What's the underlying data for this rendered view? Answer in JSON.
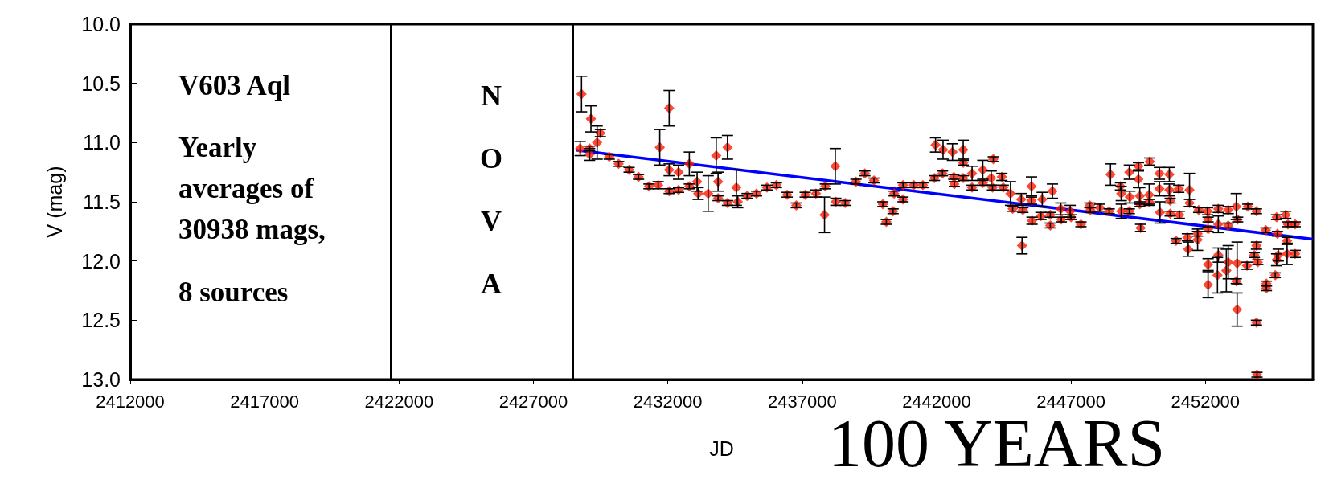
{
  "chart_data": {
    "type": "scatter",
    "xlabel": "JD",
    "ylabel": "V (mag)",
    "xlim": [
      2412000,
      2456000
    ],
    "xticks": [
      2412000,
      2417000,
      2422000,
      2427000,
      2432000,
      2437000,
      2442000,
      2447000,
      2452000
    ],
    "ylim": [
      13.0,
      10.0
    ],
    "yticks": [
      {
        "value": 10,
        "label": "10.0"
      },
      10.5,
      {
        "value": 11,
        "label": "11.0"
      },
      11.5,
      {
        "value": 12,
        "label": "12.0"
      },
      12.5,
      {
        "value": 13,
        "label": "13.0"
      }
    ],
    "grid": false,
    "marker": "diamond",
    "annotations": [
      "V603 Aql",
      "Yearly averages of 30938 mags,",
      "8 sources",
      "NOVA",
      "100 YEARS"
    ],
    "ref_lines": [
      {
        "axis": "x",
        "value": 2421700,
        "label": null,
        "color": "#000000"
      },
      {
        "axis": "x",
        "value": 2428460,
        "label": null,
        "color": "#000000"
      }
    ],
    "series": [
      {
        "color": "#ff1a00",
        "x": [
          2428740,
          2428790,
          2429090,
          2429090,
          2429140,
          2429370,
          2429490,
          2429820,
          2430170,
          2430560,
          2430910,
          2431300,
          2431640,
          2431700,
          2432050,
          2432050,
          2432050,
          2432400,
          2432400,
          2432800,
          2432800,
          2433090,
          2433130,
          2433500,
          2433800,
          2433870,
          2433870,
          2434220,
          2434220,
          2434550,
          2434600,
          2434950,
          2435300,
          2435690,
          2436040,
          2436440,
          2436780,
          2437110,
          2437510,
          2437830,
          2437860,
          2438230,
          2438250,
          2438600,
          2439000,
          2439330,
          2439670,
          2440000,
          2440130,
          2440380,
          2440420,
          2440750,
          2440750,
          2441150,
          2441490,
          2441920,
          2441960,
          2442220,
          2442240,
          2442590,
          2442640,
          2442660,
          2442990,
          2442990,
          2442990,
          2443320,
          2443320,
          2443720,
          2443720,
          2444030,
          2444110,
          2444080,
          2444430,
          2444480,
          2444750,
          2444830,
          2445150,
          2445180,
          2445210,
          2445530,
          2445530,
          2445550,
          2445880,
          2445930,
          2446230,
          2446230,
          2446310,
          2446620,
          2446640,
          2446970,
          2447000,
          2447370,
          2447700,
          2447720,
          2448070,
          2448420,
          2448470,
          2448840,
          2448870,
          2448870,
          2449170,
          2449170,
          2449190,
          2449510,
          2449510,
          2449560,
          2449560,
          2449590,
          2449910,
          2449930,
          2449910,
          2450290,
          2450290,
          2450310,
          2450660,
          2450660,
          2450690,
          2450690,
          2451010,
          2451030,
          2450910,
          2451330,
          2451360,
          2451410,
          2451410,
          2451710,
          2451710,
          2451750,
          2452080,
          2452100,
          2452100,
          2452100,
          2452100,
          2452480,
          2452480,
          2452480,
          2452450,
          2452850,
          2452850,
          2452850,
          2452780,
          2453150,
          2453200,
          2453180,
          2453150,
          2453180,
          2453580,
          2453550,
          2453900,
          2453900,
          2453820,
          2453950,
          2453900,
          2453920,
          2454250,
          2454270,
          2454270,
          2454600,
          2454650,
          2454680,
          2454650,
          2454710,
          2454990,
          2455040,
          2455040,
          2455070,
          2455340,
          2455340
        ],
        "values": [
          11.05,
          10.59,
          11.05,
          11.1,
          10.8,
          11.0,
          10.92,
          11.12,
          11.18,
          11.23,
          11.29,
          11.37,
          11.36,
          11.04,
          10.71,
          11.23,
          11.41,
          11.25,
          11.4,
          11.18,
          11.37,
          11.33,
          11.43,
          11.43,
          11.11,
          11.33,
          11.47,
          11.51,
          11.04,
          11.38,
          11.5,
          11.45,
          11.43,
          11.38,
          11.36,
          11.44,
          11.53,
          11.44,
          11.43,
          11.61,
          11.37,
          11.2,
          11.5,
          11.51,
          11.33,
          11.26,
          11.32,
          11.52,
          11.67,
          11.58,
          11.43,
          11.36,
          11.48,
          11.36,
          11.36,
          11.3,
          11.02,
          11.26,
          11.06,
          11.08,
          11.29,
          11.35,
          11.06,
          11.3,
          11.17,
          11.26,
          11.38,
          11.23,
          11.34,
          11.3,
          11.14,
          11.38,
          11.29,
          11.38,
          11.43,
          11.56,
          11.48,
          11.87,
          11.57,
          11.37,
          11.49,
          11.66,
          11.62,
          11.48,
          11.7,
          11.61,
          11.41,
          11.56,
          11.65,
          11.58,
          11.63,
          11.69,
          11.53,
          11.57,
          11.55,
          11.58,
          11.27,
          11.37,
          11.58,
          11.43,
          11.25,
          11.58,
          11.46,
          11.2,
          11.31,
          11.45,
          11.52,
          11.72,
          11.44,
          11.16,
          11.5,
          11.26,
          11.39,
          11.59,
          11.27,
          11.4,
          11.49,
          11.6,
          11.39,
          11.61,
          11.83,
          11.8,
          11.9,
          11.4,
          11.51,
          11.77,
          11.82,
          11.57,
          11.58,
          11.65,
          11.73,
          12.03,
          12.2,
          11.56,
          11.69,
          11.95,
          12.12,
          11.57,
          11.7,
          12.01,
          12.08,
          11.54,
          11.65,
          12.02,
          12.17,
          12.41,
          11.54,
          12.04,
          11.58,
          11.87,
          11.95,
          12.01,
          12.52,
          12.96,
          11.74,
          12.19,
          12.23,
          12.12,
          11.63,
          11.77,
          11.99,
          11.95,
          11.61,
          11.83,
          11.94,
          11.69,
          11.69,
          11.94
        ],
        "errors": [
          0.06,
          0.15,
          0.02,
          0.05,
          0.11,
          0.14,
          0.03,
          0.02,
          0.02,
          0.02,
          0.02,
          0.02,
          0.03,
          0.15,
          0.15,
          0.05,
          0.02,
          0.06,
          0.02,
          0.1,
          0.02,
          0.08,
          0.05,
          0.15,
          0.15,
          0.08,
          0.02,
          0.02,
          0.1,
          0.15,
          0.05,
          0.02,
          0.02,
          0.02,
          0.02,
          0.02,
          0.02,
          0.02,
          0.03,
          0.15,
          0.02,
          0.15,
          0.03,
          0.02,
          0.02,
          0.02,
          0.02,
          0.02,
          0.02,
          0.02,
          0.02,
          0.02,
          0.02,
          0.02,
          0.02,
          0.02,
          0.06,
          0.02,
          0.08,
          0.07,
          0.02,
          0.02,
          0.08,
          0.02,
          0.02,
          0.06,
          0.02,
          0.08,
          0.02,
          0.06,
          0.02,
          0.02,
          0.03,
          0.02,
          0.1,
          0.02,
          0.05,
          0.07,
          0.02,
          0.08,
          0.03,
          0.03,
          0.03,
          0.06,
          0.02,
          0.02,
          0.06,
          0.05,
          0.02,
          0.05,
          0.02,
          0.02,
          0.02,
          0.02,
          0.03,
          0.02,
          0.09,
          0.03,
          0.06,
          0.06,
          0.06,
          0.02,
          0.05,
          0.03,
          0.07,
          0.07,
          0.02,
          0.03,
          0.09,
          0.03,
          0.02,
          0.05,
          0.06,
          0.09,
          0.06,
          0.05,
          0.02,
          0.02,
          0.03,
          0.03,
          0.02,
          0.03,
          0.06,
          0.14,
          0.03,
          0.02,
          0.09,
          0.02,
          0.03,
          0.02,
          0.02,
          0.05,
          0.11,
          0.03,
          0.07,
          0.06,
          0.15,
          0.03,
          0.02,
          0.14,
          0.18,
          0.11,
          0.02,
          0.18,
          0.02,
          0.14,
          0.02,
          0.03,
          0.02,
          0.03,
          0.02,
          0.02,
          0.02,
          0.02,
          0.02,
          0.02,
          0.02,
          0.02,
          0.02,
          0.02,
          0.05,
          0.05,
          0.03,
          0.03,
          0.09,
          0.02,
          0.02,
          0.03
        ]
      },
      {
        "type": "line",
        "color": "#0000ff",
        "line_style": "solid",
        "marker": "none",
        "x": [
          2428600,
          2456000
        ],
        "values": [
          11.064,
          11.816
        ]
      }
    ]
  }
}
